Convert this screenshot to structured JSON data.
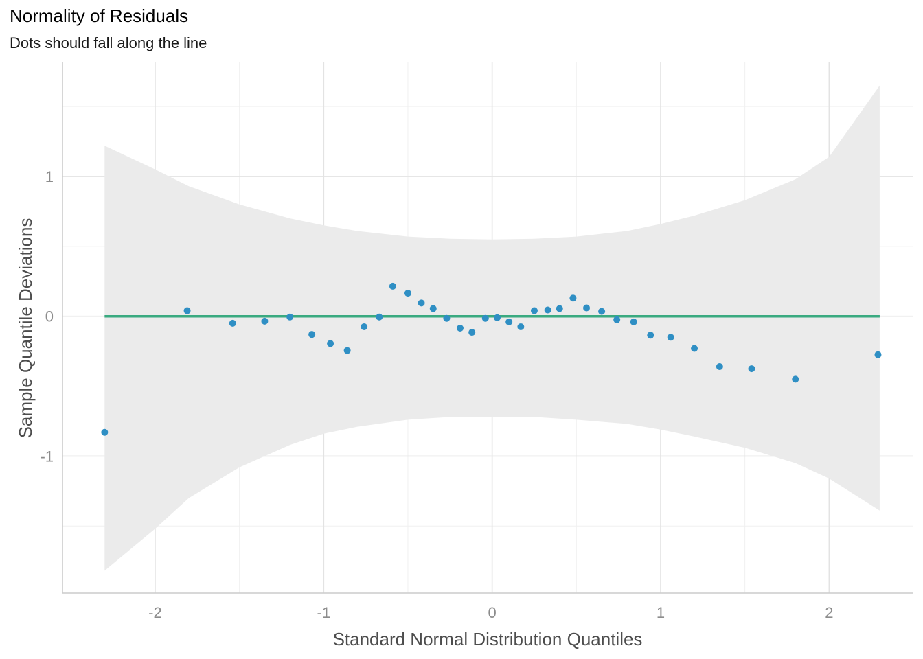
{
  "chart_data": {
    "type": "scatter",
    "title": "Normality of Residuals",
    "subtitle": "Dots should fall along the line",
    "xlabel": "Standard Normal Distribution Quantiles",
    "ylabel": "Sample Quantile Deviations",
    "xlim": [
      -2.55,
      2.5
    ],
    "ylim": [
      -1.98,
      1.82
    ],
    "x_major_ticks": [
      -2,
      -1,
      0,
      1,
      2
    ],
    "x_tick_labels": [
      "-2",
      "-1",
      "0",
      "1",
      "2"
    ],
    "y_major_ticks": [
      -1,
      0,
      1
    ],
    "y_tick_labels": [
      "-1",
      "0",
      "1"
    ],
    "x_minor_ticks": [
      -1.5,
      -0.5,
      0.5,
      1.5
    ],
    "y_minor_ticks": [
      -1.5,
      -0.5,
      0.5,
      1.5
    ],
    "grid": true,
    "reference_line": {
      "y": 0,
      "x_range": [
        -2.3,
        2.3
      ],
      "color": "#3aaa80"
    },
    "point_color": "#2f8fc4",
    "band_color": "#ebebeb",
    "confidence_band": {
      "x": [
        -2.3,
        -2.0,
        -1.8,
        -1.5,
        -1.2,
        -1.0,
        -0.8,
        -0.5,
        -0.25,
        0.0,
        0.25,
        0.5,
        0.8,
        1.0,
        1.2,
        1.5,
        1.8,
        2.0,
        2.3
      ],
      "upper": [
        1.22,
        1.05,
        0.93,
        0.8,
        0.7,
        0.65,
        0.61,
        0.57,
        0.555,
        0.55,
        0.555,
        0.57,
        0.61,
        0.66,
        0.72,
        0.83,
        0.98,
        1.14,
        1.65
      ],
      "lower": [
        -1.82,
        -1.52,
        -1.3,
        -1.08,
        -0.92,
        -0.84,
        -0.79,
        -0.74,
        -0.72,
        -0.72,
        -0.72,
        -0.74,
        -0.77,
        -0.81,
        -0.86,
        -0.94,
        -1.05,
        -1.16,
        -1.39
      ]
    },
    "points": {
      "x": [
        -2.3,
        -1.81,
        -1.54,
        -1.35,
        -1.2,
        -1.07,
        -0.96,
        -0.86,
        -0.76,
        -0.67,
        -0.59,
        -0.5,
        -0.42,
        -0.35,
        -0.27,
        -0.19,
        -0.12,
        -0.04,
        0.03,
        0.1,
        0.17,
        0.25,
        0.33,
        0.4,
        0.48,
        0.56,
        0.65,
        0.74,
        0.84,
        0.94,
        1.06,
        1.2,
        1.35,
        1.54,
        1.8,
        2.29
      ],
      "y": [
        -0.83,
        0.04,
        -0.05,
        -0.035,
        -0.005,
        -0.13,
        -0.195,
        -0.245,
        -0.075,
        -0.005,
        0.215,
        0.165,
        0.095,
        0.055,
        -0.015,
        -0.085,
        -0.115,
        -0.015,
        -0.01,
        -0.04,
        -0.075,
        0.04,
        0.045,
        0.055,
        0.13,
        0.06,
        0.035,
        -0.025,
        -0.04,
        -0.135,
        -0.15,
        -0.23,
        -0.36,
        -0.375,
        -0.45,
        -0.275
      ]
    }
  }
}
